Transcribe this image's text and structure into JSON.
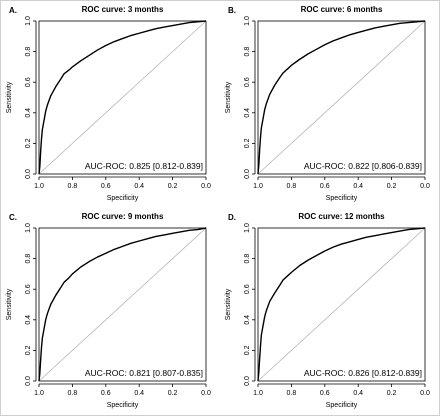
{
  "chart_data": [
    {
      "type": "line",
      "panel_label": "A.",
      "title": "ROC curve: 3 months",
      "xlabel": "Specificity",
      "ylabel": "Sensitivity",
      "x_reversed": true,
      "xlim": [
        1.0,
        0.0
      ],
      "ylim": [
        0.0,
        1.0
      ],
      "xticks": [
        "1.0",
        "0.8",
        "0.6",
        "0.4",
        "0.2",
        "0.0"
      ],
      "yticks": [
        "0.0",
        "0.2",
        "0.4",
        "0.6",
        "0.8",
        "1.0"
      ],
      "reference_line": true,
      "grid": false,
      "annotation": "AUC-ROC: 0.825 [0.812-0.839]",
      "series": [
        {
          "x": [
            1.0,
            0.995,
            0.99,
            0.985,
            0.98,
            0.97,
            0.96,
            0.95,
            0.93,
            0.9,
            0.87,
            0.85,
            0.82,
            0.8,
            0.75,
            0.7,
            0.65,
            0.6,
            0.55,
            0.5,
            0.45,
            0.4,
            0.35,
            0.3,
            0.25,
            0.2,
            0.15,
            0.1,
            0.05,
            0.0
          ],
          "y": [
            0.0,
            0.05,
            0.15,
            0.23,
            0.29,
            0.35,
            0.41,
            0.45,
            0.51,
            0.57,
            0.62,
            0.655,
            0.68,
            0.7,
            0.74,
            0.775,
            0.81,
            0.84,
            0.865,
            0.885,
            0.905,
            0.92,
            0.935,
            0.95,
            0.96,
            0.97,
            0.98,
            0.99,
            0.995,
            1.0
          ]
        }
      ]
    },
    {
      "type": "line",
      "panel_label": "B.",
      "title": "ROC curve: 6 months",
      "xlabel": "Specificity",
      "ylabel": "Sensitivity",
      "x_reversed": true,
      "xlim": [
        1.0,
        0.0
      ],
      "ylim": [
        0.0,
        1.0
      ],
      "xticks": [
        "1.0",
        "0.8",
        "0.6",
        "0.4",
        "0.2",
        "0.0"
      ],
      "yticks": [
        "0.0",
        "0.2",
        "0.4",
        "0.6",
        "0.8",
        "1.0"
      ],
      "reference_line": true,
      "grid": false,
      "annotation": "AUC-ROC: 0.822 [0.806-0.839]",
      "series": [
        {
          "x": [
            1.0,
            0.995,
            0.99,
            0.985,
            0.98,
            0.97,
            0.96,
            0.95,
            0.93,
            0.9,
            0.87,
            0.85,
            0.82,
            0.8,
            0.75,
            0.7,
            0.65,
            0.6,
            0.55,
            0.5,
            0.45,
            0.4,
            0.35,
            0.3,
            0.25,
            0.2,
            0.15,
            0.1,
            0.05,
            0.0
          ],
          "y": [
            0.0,
            0.06,
            0.16,
            0.24,
            0.3,
            0.36,
            0.42,
            0.46,
            0.52,
            0.58,
            0.63,
            0.66,
            0.69,
            0.71,
            0.75,
            0.785,
            0.815,
            0.845,
            0.87,
            0.89,
            0.91,
            0.925,
            0.94,
            0.955,
            0.965,
            0.975,
            0.985,
            0.99,
            0.995,
            1.0
          ]
        }
      ]
    },
    {
      "type": "line",
      "panel_label": "C.",
      "title": "ROC curve: 9 months",
      "xlabel": "Specificity",
      "ylabel": "Sensitivity",
      "x_reversed": true,
      "xlim": [
        1.0,
        0.0
      ],
      "ylim": [
        0.0,
        1.0
      ],
      "xticks": [
        "1.0",
        "0.8",
        "0.6",
        "0.4",
        "0.2",
        "0.0"
      ],
      "yticks": [
        "0.0",
        "0.2",
        "0.4",
        "0.6",
        "0.8",
        "1.0"
      ],
      "reference_line": true,
      "grid": false,
      "annotation": "AUC-ROC: 0.821 [0.807-0.835]",
      "series": [
        {
          "x": [
            1.0,
            0.995,
            0.99,
            0.985,
            0.98,
            0.97,
            0.96,
            0.95,
            0.93,
            0.9,
            0.87,
            0.85,
            0.82,
            0.8,
            0.75,
            0.7,
            0.65,
            0.6,
            0.55,
            0.5,
            0.45,
            0.4,
            0.35,
            0.3,
            0.25,
            0.2,
            0.15,
            0.1,
            0.05,
            0.0
          ],
          "y": [
            0.0,
            0.05,
            0.14,
            0.22,
            0.28,
            0.34,
            0.4,
            0.44,
            0.5,
            0.56,
            0.61,
            0.645,
            0.675,
            0.7,
            0.745,
            0.78,
            0.81,
            0.835,
            0.86,
            0.88,
            0.9,
            0.915,
            0.93,
            0.945,
            0.955,
            0.965,
            0.975,
            0.985,
            0.99,
            1.0
          ]
        }
      ]
    },
    {
      "type": "line",
      "panel_label": "D.",
      "title": "ROC curve: 12 months",
      "xlabel": "Specificity",
      "ylabel": "Sensitivity",
      "x_reversed": true,
      "xlim": [
        1.0,
        0.0
      ],
      "ylim": [
        0.0,
        1.0
      ],
      "xticks": [
        "1.0",
        "0.8",
        "0.6",
        "0.4",
        "0.2",
        "0.0"
      ],
      "yticks": [
        "0.0",
        "0.2",
        "0.4",
        "0.6",
        "0.8",
        "1.0"
      ],
      "reference_line": true,
      "grid": false,
      "annotation": "AUC-ROC: 0.826 [0.812-0.839]",
      "series": [
        {
          "x": [
            1.0,
            0.995,
            0.99,
            0.985,
            0.98,
            0.97,
            0.96,
            0.95,
            0.93,
            0.9,
            0.87,
            0.85,
            0.82,
            0.8,
            0.75,
            0.7,
            0.65,
            0.6,
            0.55,
            0.5,
            0.45,
            0.4,
            0.35,
            0.3,
            0.25,
            0.2,
            0.15,
            0.1,
            0.05,
            0.0
          ],
          "y": [
            0.0,
            0.06,
            0.15,
            0.23,
            0.3,
            0.36,
            0.42,
            0.46,
            0.52,
            0.575,
            0.625,
            0.66,
            0.69,
            0.71,
            0.755,
            0.79,
            0.82,
            0.85,
            0.875,
            0.895,
            0.91,
            0.925,
            0.94,
            0.95,
            0.96,
            0.97,
            0.98,
            0.99,
            0.995,
            1.0
          ]
        }
      ]
    }
  ],
  "colors": {
    "curve": "#000000",
    "reference": "#b5b5b5",
    "axis": "#000000"
  }
}
